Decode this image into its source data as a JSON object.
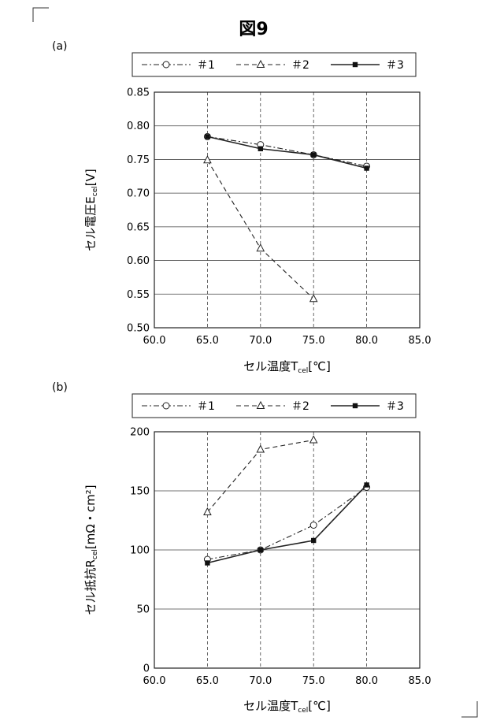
{
  "figure_title": "図9",
  "chart_data": [
    {
      "panel": "(a)",
      "type": "line",
      "xlabel": "セル温度T",
      "xlabel_sub": "cel",
      "xlabel_unit": "[℃]",
      "ylabel": "セル電圧E",
      "ylabel_sub": "cel",
      "ylabel_unit": "[V]",
      "xlim": [
        60.0,
        85.0
      ],
      "ylim": [
        0.5,
        0.85
      ],
      "xticks": [
        "60.0",
        "65.0",
        "70.0",
        "75.0",
        "80.0",
        "85.0"
      ],
      "yticks": [
        "0.50",
        "0.55",
        "0.60",
        "0.65",
        "0.70",
        "0.75",
        "0.80",
        "0.85"
      ],
      "grid": true,
      "legend_position": "top",
      "series": [
        {
          "name": "＃1",
          "marker": "circle-open",
          "dash": "dashdot",
          "points": [
            [
              65,
              0.784
            ],
            [
              70,
              0.772
            ],
            [
              75,
              0.757
            ],
            [
              80,
              0.74
            ]
          ]
        },
        {
          "name": "＃2",
          "marker": "triangle-open",
          "dash": "dashed",
          "points": [
            [
              65,
              0.749
            ],
            [
              70,
              0.618
            ],
            [
              75,
              0.543
            ]
          ]
        },
        {
          "name": "＃3",
          "marker": "square-filled",
          "dash": "solid",
          "points": [
            [
              65,
              0.784
            ],
            [
              70,
              0.766
            ],
            [
              75,
              0.757
            ],
            [
              80,
              0.737
            ]
          ]
        }
      ]
    },
    {
      "panel": "(b)",
      "type": "line",
      "xlabel": "セル温度T",
      "xlabel_sub": "cel",
      "xlabel_unit": "[℃]",
      "ylabel": "セル抵抗R",
      "ylabel_sub": "cel",
      "ylabel_unit": "[mΩ・cm²]",
      "xlim": [
        60.0,
        85.0
      ],
      "ylim": [
        0,
        200
      ],
      "xticks": [
        "60.0",
        "65.0",
        "70.0",
        "75.0",
        "80.0",
        "85.0"
      ],
      "yticks": [
        "0",
        "50",
        "100",
        "150",
        "200"
      ],
      "grid": true,
      "legend_position": "top",
      "series": [
        {
          "name": "＃1",
          "marker": "circle-open",
          "dash": "dashdot",
          "points": [
            [
              65,
              92
            ],
            [
              70,
              100
            ],
            [
              75,
              121
            ],
            [
              80,
              153
            ]
          ]
        },
        {
          "name": "＃2",
          "marker": "triangle-open",
          "dash": "dashed",
          "points": [
            [
              65,
              132
            ],
            [
              70,
              185
            ],
            [
              75,
              193
            ]
          ]
        },
        {
          "name": "＃3",
          "marker": "square-filled",
          "dash": "solid",
          "points": [
            [
              65,
              89
            ],
            [
              70,
              100
            ],
            [
              75,
              108
            ],
            [
              80,
              155
            ]
          ]
        }
      ]
    }
  ]
}
